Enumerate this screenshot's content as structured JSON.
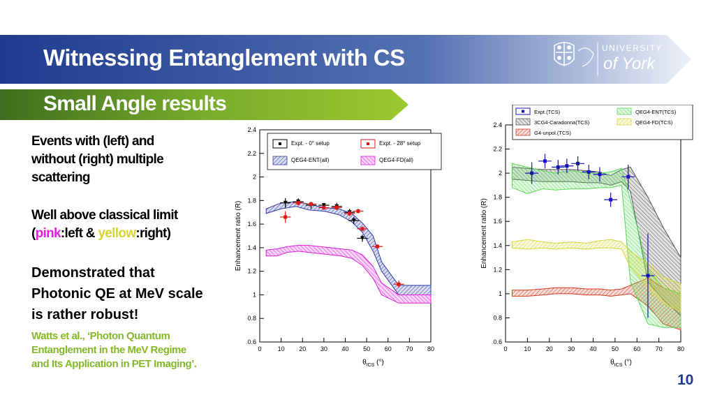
{
  "header": {
    "title": "Witnessing Entanglement with CS",
    "subtitle": "Small Angle results",
    "logo_text_top": "UNIVERSITY",
    "logo_text_bottom": "of York",
    "banner_color": "#1f3a8c",
    "subtitle_color": "#84b828"
  },
  "sidebar": {
    "line1": "Events with (left) and",
    "line2": "without (right) multiple",
    "line3": "scattering",
    "limit_line1": "Well above classical limit",
    "limit_open": "(",
    "limit_pink": "pink",
    "limit_mid": ":left & ",
    "limit_yellow": "yellow",
    "limit_close": ":right)",
    "demo1": "Demonstrated that",
    "demo2": "Photonic QE at MeV scale",
    "demo3": "is rather robust!",
    "ref1": "Watts et al., ‘Photon Quantum",
    "ref2": "Entanglement in the MeV Regime",
    "ref3": "and Its Application in PET Imaging’."
  },
  "page_number": "10",
  "chart_data": [
    {
      "type": "line",
      "xlabel_main": "θ",
      "xlabel_sub": "ICS",
      "xlabel_unit": " (°)",
      "ylabel": "Enhancement ratio (R)",
      "xlim": [
        0,
        80
      ],
      "ylim": [
        0.6,
        2.4
      ],
      "xticks": [
        "0",
        "10",
        "20",
        "30",
        "40",
        "50",
        "60",
        "70",
        "80"
      ],
      "yticks": [
        "0.6",
        "0.8",
        "1",
        "1.2",
        "1.4",
        "1.6",
        "1.8",
        "2",
        "2.2",
        "2.4"
      ],
      "legend": [
        "Expt. - 0° setup",
        "Expt. - 28° setup",
        "QEG4-ENT(all)",
        "QEG4-FD(all)"
      ],
      "series": [
        {
          "name": "Expt. - 0° setup",
          "color": "#000000",
          "x": [
            12,
            18,
            24,
            30,
            36,
            42,
            44,
            48
          ],
          "y": [
            1.78,
            1.79,
            1.76,
            1.76,
            1.75,
            1.7,
            1.63,
            1.48
          ],
          "xerr": 2.5,
          "yerr": [
            0.04,
            0.03,
            0.03,
            0.02,
            0.03,
            0.03,
            0.03,
            0.03
          ]
        },
        {
          "name": "Expt. - 28° setup",
          "color": "#e01515",
          "x": [
            12,
            18,
            24,
            30,
            36,
            42,
            46,
            48,
            55,
            65
          ],
          "y": [
            1.66,
            1.78,
            1.77,
            1.74,
            1.74,
            1.69,
            1.71,
            1.56,
            1.41,
            1.09
          ],
          "xerr": 2.5,
          "yerr": [
            0.05,
            0.02,
            0.02,
            0.02,
            0.02,
            0.02,
            0.02,
            0.02,
            0.02,
            0.03
          ]
        },
        {
          "name": "QEG4-ENT(all)",
          "color": "#2a3aa8",
          "x": [
            3,
            10,
            17,
            23,
            30,
            37,
            43,
            48,
            53,
            57,
            65,
            80
          ],
          "upper": [
            1.73,
            1.78,
            1.79,
            1.77,
            1.74,
            1.73,
            1.69,
            1.61,
            1.5,
            1.28,
            1.08,
            1.08
          ],
          "lower": [
            1.69,
            1.73,
            1.75,
            1.72,
            1.71,
            1.68,
            1.62,
            1.53,
            1.37,
            1.2,
            1.0,
            1.0
          ]
        },
        {
          "name": "QEG4-FD(all)",
          "color": "#e01ee0",
          "x": [
            3,
            8,
            13,
            18,
            23,
            28,
            33,
            38,
            43,
            48,
            53,
            57,
            65,
            80
          ],
          "upper": [
            1.38,
            1.39,
            1.41,
            1.42,
            1.42,
            1.41,
            1.4,
            1.39,
            1.38,
            1.34,
            1.24,
            1.1,
            1.0,
            1.0
          ],
          "lower": [
            1.33,
            1.33,
            1.36,
            1.37,
            1.36,
            1.35,
            1.34,
            1.33,
            1.31,
            1.25,
            1.14,
            1.0,
            0.93,
            0.93
          ]
        }
      ]
    },
    {
      "type": "line",
      "xlabel_main": "θ",
      "xlabel_sub": "ICS",
      "xlabel_unit": " (°)",
      "ylabel": "Enhancement ratio (R)",
      "xlim": [
        0,
        80
      ],
      "ylim": [
        0.6,
        2.4
      ],
      "xticks": [
        "0",
        "10",
        "20",
        "30",
        "40",
        "50",
        "60",
        "70",
        "80"
      ],
      "yticks": [
        "0.6",
        "0.8",
        "1",
        "1.2",
        "1.4",
        "1.6",
        "1.8",
        "2",
        "2.2",
        "2.4"
      ],
      "legend": [
        "Expt.(TCS)",
        "3CG4-Caradonna(TCS)",
        "G4-unpol.(TCS)",
        "QEG4-ENT(TCS)",
        "QEG4-FD(TCS)"
      ],
      "series": [
        {
          "name": "Expt.(TCS)",
          "color": "#1414b4",
          "x": [
            12,
            18,
            24,
            28,
            33,
            38,
            43,
            48,
            56,
            65
          ],
          "y": [
            2.0,
            2.1,
            2.05,
            2.06,
            2.08,
            2.01,
            1.99,
            1.78,
            1.97,
            1.15
          ],
          "xerr": 3,
          "yerr": [
            0.09,
            0.06,
            0.06,
            0.06,
            0.06,
            0.06,
            0.06,
            0.06,
            0.1,
            0.35
          ]
        },
        {
          "name": "3CG4-Caradonna(TCS)",
          "color": "#555555",
          "x": [
            3,
            10,
            17,
            23,
            30,
            37,
            43,
            48,
            53,
            57,
            65,
            72,
            80
          ],
          "upper": [
            2.05,
            2.04,
            2.03,
            2.03,
            2.03,
            2.02,
            2.01,
            1.98,
            2.03,
            2.05,
            1.8,
            1.55,
            1.3
          ],
          "lower": [
            1.95,
            1.94,
            1.93,
            1.93,
            1.93,
            1.92,
            1.92,
            1.9,
            1.93,
            1.85,
            1.1,
            0.95,
            0.82
          ]
        },
        {
          "name": "G4-unpol.(TCS)",
          "color": "#d03a1e",
          "x": [
            3,
            10,
            17,
            23,
            30,
            37,
            43,
            48,
            53,
            57,
            65,
            72,
            80
          ],
          "upper": [
            1.03,
            1.03,
            1.04,
            1.05,
            1.05,
            1.04,
            1.04,
            1.03,
            1.04,
            1.07,
            1.13,
            1.05,
            1.0
          ],
          "lower": [
            0.98,
            0.98,
            0.99,
            1.0,
            1.0,
            0.99,
            0.99,
            0.98,
            0.99,
            1.0,
            0.9,
            0.75,
            0.7
          ]
        },
        {
          "name": "QEG4-ENT(TCS)",
          "color": "#58d858",
          "x": [
            3,
            10,
            17,
            23,
            30,
            37,
            43,
            48,
            53,
            57,
            65,
            72,
            80
          ],
          "upper": [
            2.08,
            2.05,
            2.02,
            2.0,
            2.02,
            2.0,
            2.0,
            2.01,
            2.04,
            1.78,
            1.2,
            1.05,
            1.0
          ],
          "lower": [
            1.88,
            1.83,
            1.87,
            1.86,
            1.87,
            1.87,
            1.88,
            1.88,
            1.9,
            1.1,
            0.75,
            0.72,
            0.72
          ]
        },
        {
          "name": "QEG4-FD(TCS)",
          "color": "#d6d63c",
          "x": [
            3,
            10,
            17,
            23,
            30,
            37,
            43,
            48,
            53,
            57,
            65,
            72,
            80
          ],
          "upper": [
            1.43,
            1.45,
            1.43,
            1.42,
            1.43,
            1.42,
            1.44,
            1.45,
            1.43,
            1.35,
            1.25,
            1.14,
            1.08
          ],
          "lower": [
            1.38,
            1.37,
            1.38,
            1.37,
            1.38,
            1.37,
            1.38,
            1.38,
            1.37,
            1.22,
            1.05,
            0.92,
            0.85
          ]
        }
      ]
    }
  ]
}
